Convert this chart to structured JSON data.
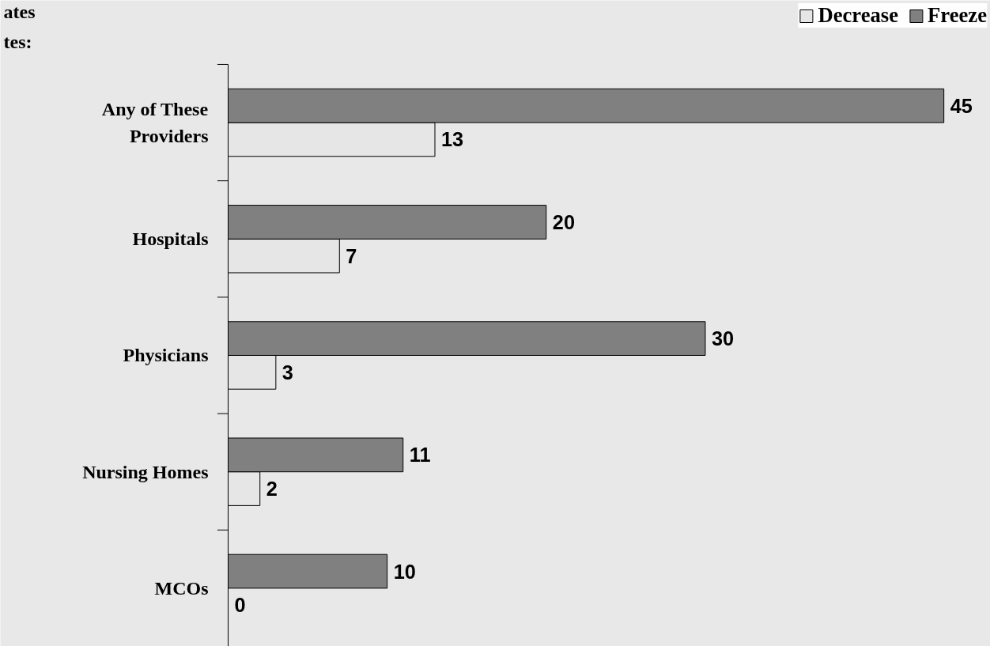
{
  "chart_data": {
    "type": "bar",
    "orientation": "horizontal",
    "annotations": [
      "ates",
      "tes:"
    ],
    "categories": [
      "Any of These Providers",
      "Hospitals",
      "Physicians",
      "Nursing Homes",
      "MCOs"
    ],
    "series": [
      {
        "name": "Decrease",
        "color": "#e6e6e6",
        "values": [
          13,
          7,
          3,
          2,
          0
        ]
      },
      {
        "name": "Freeze",
        "color": "#808080",
        "values": [
          45,
          20,
          30,
          11,
          10
        ]
      }
    ],
    "data_labels": true,
    "legend": "top right"
  }
}
